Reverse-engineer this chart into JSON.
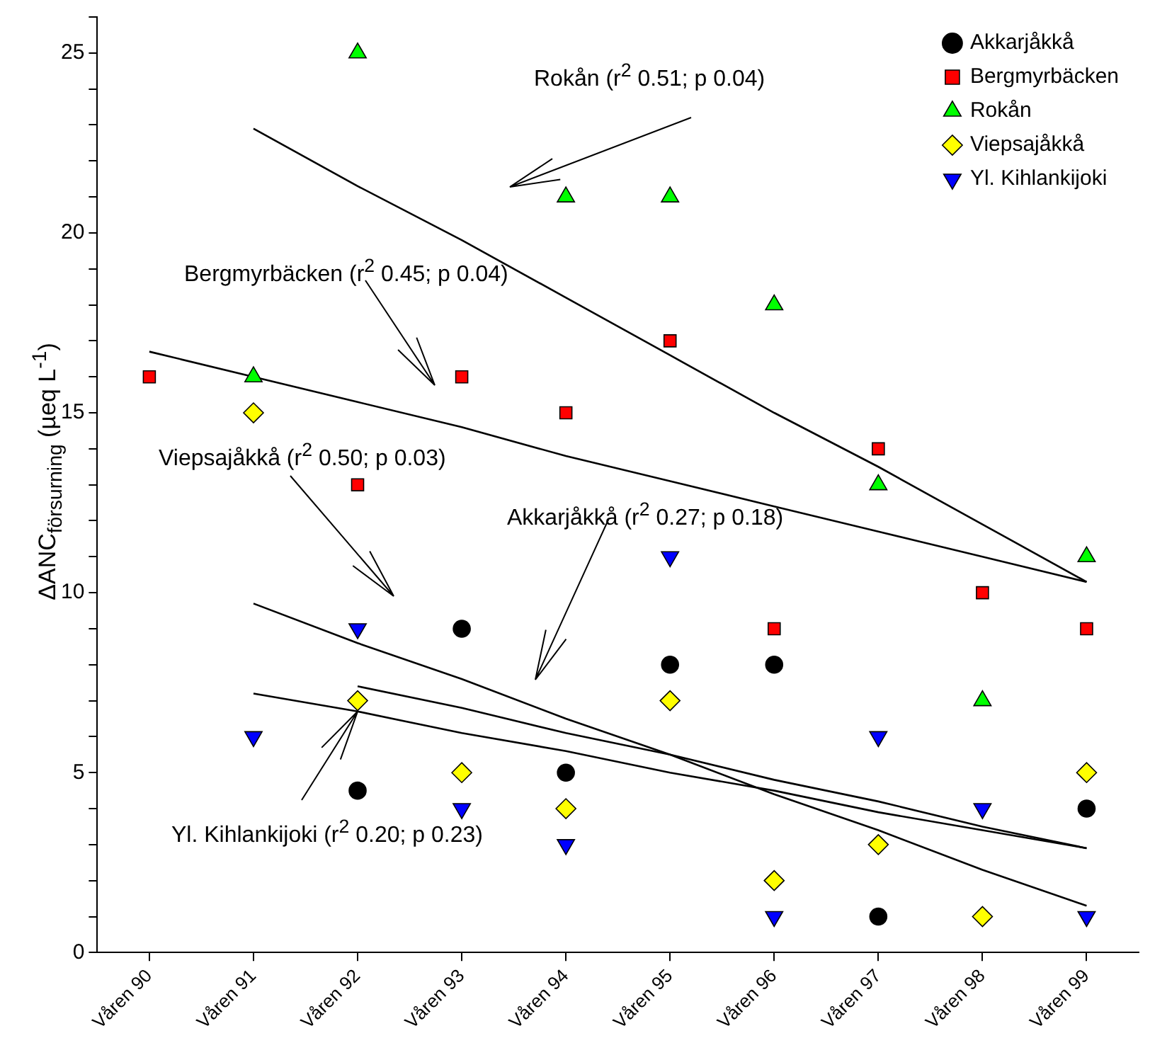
{
  "chart_data": {
    "type": "scatter",
    "ylabel": "ΔANC$_{försurning}$ (µeq L$^{-1}$)",
    "categories": [
      "Våren 90",
      "Våren 91",
      "Våren 92",
      "Våren 93",
      "Våren 94",
      "Våren 95",
      "Våren 96",
      "Våren 97",
      "Våren 98",
      "Våren 99"
    ],
    "ylim": [
      0,
      26
    ],
    "yticks": [
      0,
      {
        "value": 1,
        "label": null
      },
      {
        "value": 2,
        "label": null
      },
      {
        "value": 3,
        "label": null
      },
      {
        "value": 4,
        "label": null
      },
      5,
      {
        "value": 6,
        "label": null
      },
      {
        "value": 7,
        "label": null
      },
      {
        "value": 8,
        "label": null
      },
      {
        "value": 9,
        "label": null
      },
      10,
      {
        "value": 11,
        "label": null
      },
      {
        "value": 12,
        "label": null
      },
      {
        "value": 13,
        "label": null
      },
      {
        "value": 14,
        "label": null
      },
      15,
      {
        "value": 16,
        "label": null
      },
      {
        "value": 17,
        "label": null
      },
      {
        "value": 18,
        "label": null
      },
      {
        "value": 19,
        "label": null
      },
      20,
      {
        "value": 21,
        "label": null
      },
      {
        "value": 22,
        "label": null
      },
      {
        "value": 23,
        "label": null
      },
      {
        "value": 24,
        "label": null
      },
      25,
      {
        "value": 26,
        "label": null
      }
    ],
    "grid": false,
    "legend": "top right",
    "series": [
      {
        "name": "Akkarjåkkå",
        "color": "#000000",
        "marker": "circle",
        "values": [
          null,
          null,
          4.5,
          9,
          5,
          8,
          8,
          1,
          null,
          4
        ]
      },
      {
        "name": "Bergmyrbäcken",
        "color": "#ff0000",
        "marker": "square",
        "values": [
          16,
          null,
          13,
          16,
          15,
          17,
          9,
          14,
          10,
          9
        ]
      },
      {
        "name": "Rokån",
        "color": "#00ff00",
        "marker": "triangle",
        "values": [
          null,
          16,
          25,
          null,
          21,
          21,
          18,
          13,
          7,
          11
        ]
      },
      {
        "name": "Viepsajåkkå",
        "color": "#ffff00",
        "marker": "diamond",
        "values": [
          null,
          15,
          7,
          5,
          4,
          7,
          2,
          3,
          1,
          5
        ]
      },
      {
        "name": "Yl. Kihlankijoki",
        "color": "#0000ff",
        "marker": "triangle-down",
        "values": [
          null,
          6,
          9,
          4,
          3,
          11,
          1,
          6,
          4,
          1
        ]
      },
      {
        "type": "line",
        "color": "#000000",
        "values": [
          null,
          22.9,
          21.3,
          19.8,
          18.2,
          16.6,
          15.0,
          13.5,
          11.9,
          10.3
        ]
      },
      {
        "type": "line",
        "color": "#000000",
        "values": [
          16.7,
          16.0,
          15.3,
          14.6,
          13.8,
          13.1,
          12.4,
          11.7,
          11.0,
          10.3
        ]
      },
      {
        "type": "line",
        "color": "#000000",
        "values": [
          null,
          9.7,
          8.6,
          7.6,
          6.5,
          5.5,
          4.4,
          3.4,
          2.3,
          1.3
        ]
      },
      {
        "type": "line",
        "color": "#000000",
        "values": [
          null,
          null,
          7.4,
          6.8,
          6.1,
          5.5,
          4.8,
          4.2,
          3.5,
          2.9
        ]
      },
      {
        "type": "line",
        "color": "#000000",
        "values": [
          null,
          7.2,
          6.7,
          6.1,
          5.6,
          5.0,
          4.5,
          3.9,
          3.4,
          2.9
        ]
      }
    ],
    "annotations": [
      "Rokån (r$^{2}$ 0.51; p 0.04)",
      "Bergmyrbäcken (r$^{2}$ 0.45; p 0.04)",
      "Viepsajåkkå (r$^{2}$ 0.50; p 0.03)",
      "Akkarjåkkå (r$^{2}$ 0.27; p 0.18)",
      {
        "text": "Yl. Kihlankijoki (r$^{2}$ 0.20; p 0.23)",
        "x": "Våren 92",
        "y": 6.7
      }
    ]
  }
}
